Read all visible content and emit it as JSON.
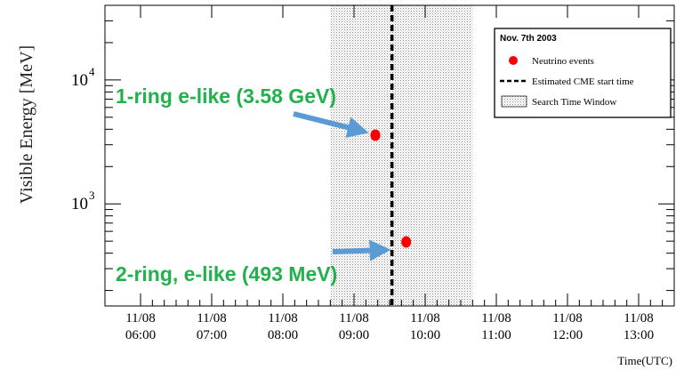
{
  "chart_data": {
    "type": "scatter",
    "title": "",
    "ylabel": "Visible Energy [MeV]",
    "xlabel": "Time(UTC)",
    "y_scale": "log",
    "ylim": [
      150,
      40000
    ],
    "xlim": [
      "2003-11-08 05:30",
      "2003-11-08 13:30"
    ],
    "x_ticks": [
      {
        "date": "11/08",
        "time": "06:00",
        "value": "2003-11-08 06:00"
      },
      {
        "date": "11/08",
        "time": "07:00",
        "value": "2003-11-08 07:00"
      },
      {
        "date": "11/08",
        "time": "08:00",
        "value": "2003-11-08 08:00"
      },
      {
        "date": "11/08",
        "time": "09:00",
        "value": "2003-11-08 09:00"
      },
      {
        "date": "11/08",
        "time": "10:00",
        "value": "2003-11-08 10:00"
      },
      {
        "date": "11/08",
        "time": "11:00",
        "value": "2003-11-08 11:00"
      },
      {
        "date": "11/08",
        "time": "12:00",
        "value": "2003-11-08 12:00"
      },
      {
        "date": "11/08",
        "time": "13:00",
        "value": "2003-11-08 13:00"
      }
    ],
    "y_ticks": [
      {
        "base": "10",
        "exp": "3",
        "value": 1000
      },
      {
        "base": "10",
        "exp": "4",
        "value": 10000
      }
    ],
    "series": [
      {
        "name": "Neutrino events",
        "color": "#ff0000",
        "points": [
          {
            "x": "2003-11-08 09:18",
            "y": 3580
          },
          {
            "x": "2003-11-08 09:44",
            "y": 493
          }
        ]
      }
    ],
    "cme_start": {
      "name": "Estimated CME start time",
      "x": "2003-11-08 09:32"
    },
    "search_window": {
      "name": "Search Time Window",
      "x0": "2003-11-08 08:40",
      "x1": "2003-11-08 10:40"
    },
    "legend": {
      "title": "Nov. 7th 2003",
      "position": "top-right",
      "entries": [
        {
          "label": "Neutrino events",
          "marker": "red-dot"
        },
        {
          "label": "Estimated CME start time",
          "marker": "dashed-line"
        },
        {
          "label": "Search Time Window",
          "marker": "hatched-box"
        }
      ]
    },
    "annotations": [
      {
        "text": "1-ring e-like (3.58 GeV)",
        "color": "#22b14c",
        "points_to": 0
      },
      {
        "text": "2-ring, e-like (493 MeV)",
        "color": "#22b14c",
        "points_to": 1
      }
    ],
    "arrow_color": "#5b9bd5",
    "grid": false
  }
}
